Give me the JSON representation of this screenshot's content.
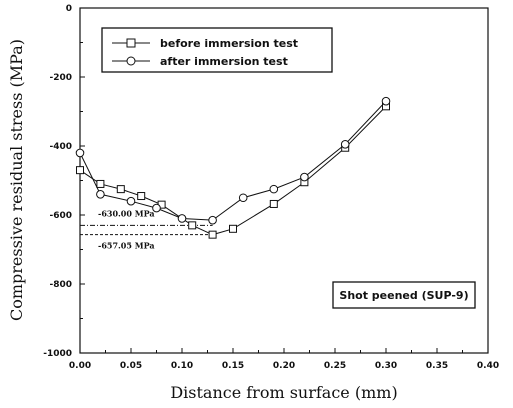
{
  "chart_data": {
    "type": "line",
    "xlabel": "Distance from surface (mm)",
    "ylabel": "Compressive residual stress (MPa)",
    "xlim": [
      0.0,
      0.4
    ],
    "ylim": [
      -1000,
      0
    ],
    "x_ticks": [
      "0.00",
      "0.05",
      "0.10",
      "0.15",
      "0.20",
      "0.25",
      "0.30",
      "0.35",
      "0.40"
    ],
    "y_ticks": [
      "0",
      "-200",
      "-400",
      "-600",
      "-800",
      "-1000"
    ],
    "series": [
      {
        "name": "before immersion test",
        "marker": "square",
        "x": [
          0.0,
          0.02,
          0.04,
          0.06,
          0.08,
          0.11,
          0.13,
          0.15,
          0.19,
          0.22,
          0.26,
          0.3
        ],
        "y": [
          -470,
          -510,
          -525,
          -545,
          -570,
          -630,
          -657,
          -640,
          -568,
          -505,
          -405,
          -285
        ]
      },
      {
        "name": "after immersion test",
        "marker": "circle",
        "x": [
          0.0,
          0.02,
          0.05,
          0.075,
          0.1,
          0.13,
          0.16,
          0.19,
          0.22,
          0.26,
          0.3
        ],
        "y": [
          -420,
          -540,
          -560,
          -580,
          -610,
          -615,
          -550,
          -525,
          -490,
          -395,
          -270
        ]
      }
    ],
    "reference_lines": [
      {
        "label": "-630.00 MPa",
        "value": -630
      },
      {
        "label": "-657.05 MPa",
        "value": -657
      }
    ],
    "annotation_box": "Shot peened (SUP-9)",
    "legend_position": "top-left",
    "grid": false
  }
}
